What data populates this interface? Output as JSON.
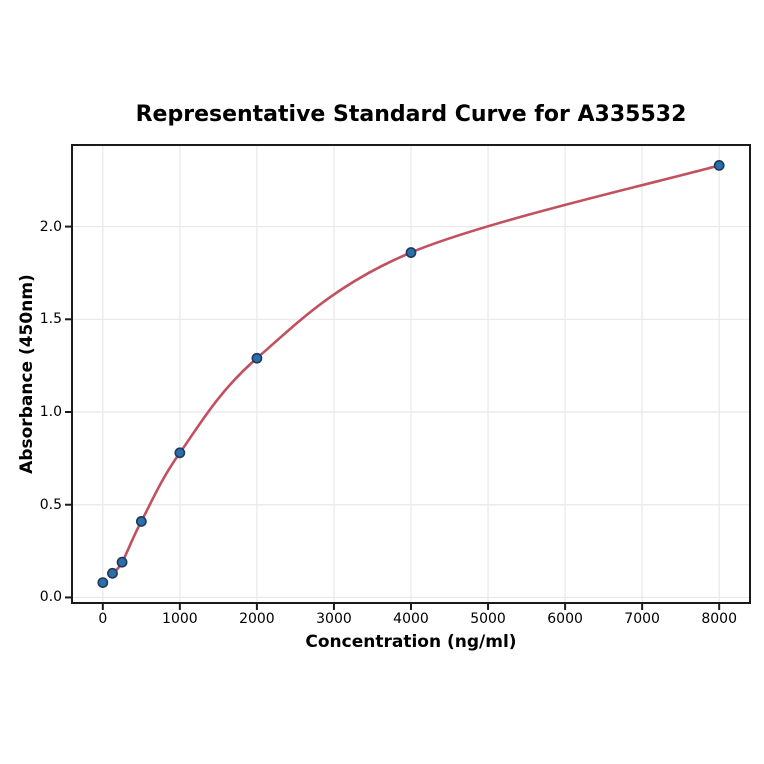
{
  "page": {
    "background": "#ffffff"
  },
  "chart_data": {
    "type": "scatter",
    "title": "Representative Standard Curve for A335532",
    "xlabel": "Concentration (ng/ml)",
    "ylabel": "Absorbance (450nm)",
    "x": [
      0,
      125,
      250,
      500,
      1000,
      2000,
      4000,
      8000
    ],
    "y": [
      0.08,
      0.13,
      0.19,
      0.41,
      0.78,
      1.29,
      1.86,
      2.33
    ],
    "fit_curve_through_points_from_index": 1,
    "xlim": [
      -400,
      8400
    ],
    "ylim": [
      -0.03,
      2.44
    ],
    "x_ticks": {
      "values": [
        0,
        1000,
        2000,
        3000,
        4000,
        5000,
        6000,
        7000,
        8000
      ],
      "labels": [
        "0",
        "1000",
        "2000",
        "3000",
        "4000",
        "5000",
        "6000",
        "7000",
        "8000"
      ]
    },
    "y_ticks": {
      "values": [
        0.0,
        0.5,
        1.0,
        1.5,
        2.0
      ],
      "labels": [
        "0.0",
        "0.5",
        "1.0",
        "1.5",
        "2.0"
      ]
    },
    "grid": true,
    "legend_position": "none",
    "colors": {
      "curve": "#c25160",
      "marker_fill": "#2d6ea9",
      "marker_edge": "#1b3a5e",
      "grid": "#e8e8e8",
      "axis": "#1a1a1a",
      "text": "#000000"
    }
  }
}
